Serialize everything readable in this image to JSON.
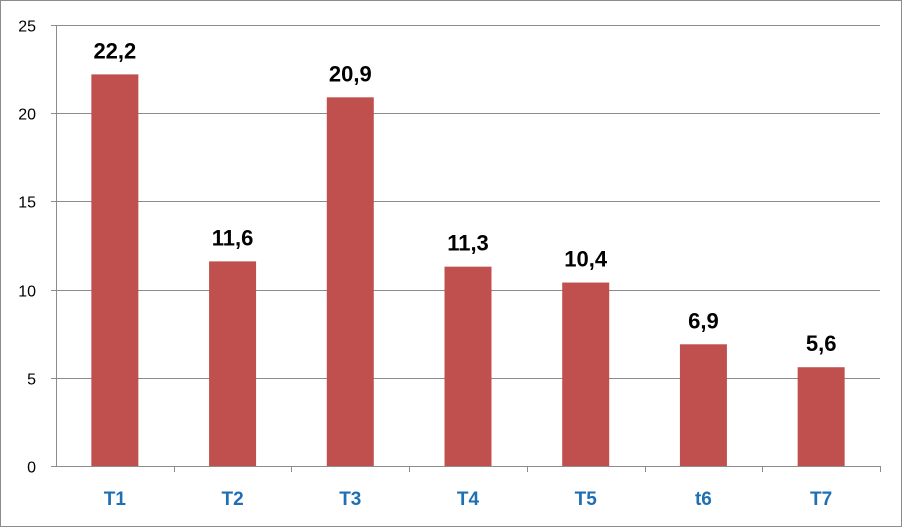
{
  "chart_data": {
    "type": "bar",
    "title": "",
    "xlabel": "",
    "ylabel": "",
    "categories": [
      "T1",
      "T2",
      "T3",
      "T4",
      "T5",
      "t6",
      "T7"
    ],
    "values": [
      22.2,
      11.6,
      20.9,
      11.3,
      10.4,
      6.9,
      5.6
    ],
    "data_labels": [
      "22,2",
      "11,6",
      "20,9",
      "11,3",
      "10,4",
      "6,9",
      "5,6"
    ],
    "ylim": [
      0,
      25
    ],
    "yticks": [
      0,
      5,
      10,
      15,
      20,
      25
    ],
    "grid": true,
    "legend": "none",
    "colors": {
      "bar": "#C0504D",
      "category_label": "#1F6FB4",
      "gridline": "#8C8C8C"
    }
  }
}
